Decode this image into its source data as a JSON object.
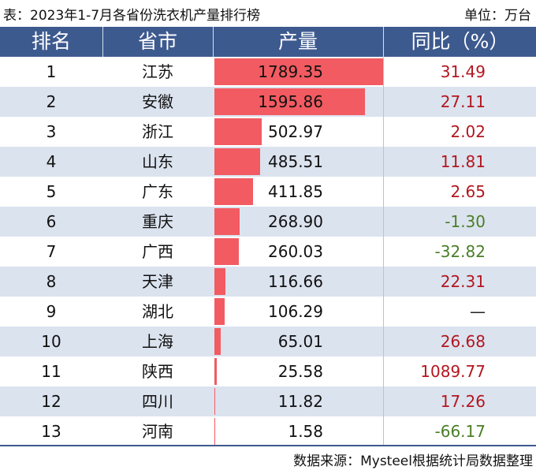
{
  "title": "表：2023年1-7月各省份洗衣机产量排行榜",
  "unit": "单位：万台",
  "headers": {
    "rank": "排名",
    "province": "省市",
    "output": "产量",
    "yoy": "同比（%）"
  },
  "colors": {
    "header_bg": "#3d5a8f",
    "bar": "#f25b61",
    "positive": "#b3171f",
    "negative": "#4a7f27",
    "alt_row": "#dbe3ef"
  },
  "chart_data": {
    "type": "table",
    "columns": [
      "排名",
      "省市",
      "产量",
      "同比（%）"
    ],
    "rows": [
      {
        "rank": "1",
        "province": "江苏",
        "output": "1789.35",
        "yoy": "31.49"
      },
      {
        "rank": "2",
        "province": "安徽",
        "output": "1595.86",
        "yoy": "27.11"
      },
      {
        "rank": "3",
        "province": "浙江",
        "output": "502.97",
        "yoy": "2.02"
      },
      {
        "rank": "4",
        "province": "山东",
        "output": "485.51",
        "yoy": "11.81"
      },
      {
        "rank": "5",
        "province": "广东",
        "output": "411.85",
        "yoy": "2.65"
      },
      {
        "rank": "6",
        "province": "重庆",
        "output": "268.90",
        "yoy": "-1.30"
      },
      {
        "rank": "7",
        "province": "广西",
        "output": "260.03",
        "yoy": "-32.82"
      },
      {
        "rank": "8",
        "province": "天津",
        "output": "116.66",
        "yoy": "22.31"
      },
      {
        "rank": "9",
        "province": "湖北",
        "output": "106.29",
        "yoy": "—"
      },
      {
        "rank": "10",
        "province": "上海",
        "output": "65.01",
        "yoy": "26.68"
      },
      {
        "rank": "11",
        "province": "陕西",
        "output": "25.58",
        "yoy": "1089.77"
      },
      {
        "rank": "12",
        "province": "四川",
        "output": "11.82",
        "yoy": "17.26"
      },
      {
        "rank": "13",
        "province": "河南",
        "output": "1.58",
        "yoy": "-66.17"
      }
    ]
  },
  "source": "数据来源：Mysteel根据统计局数据整理"
}
